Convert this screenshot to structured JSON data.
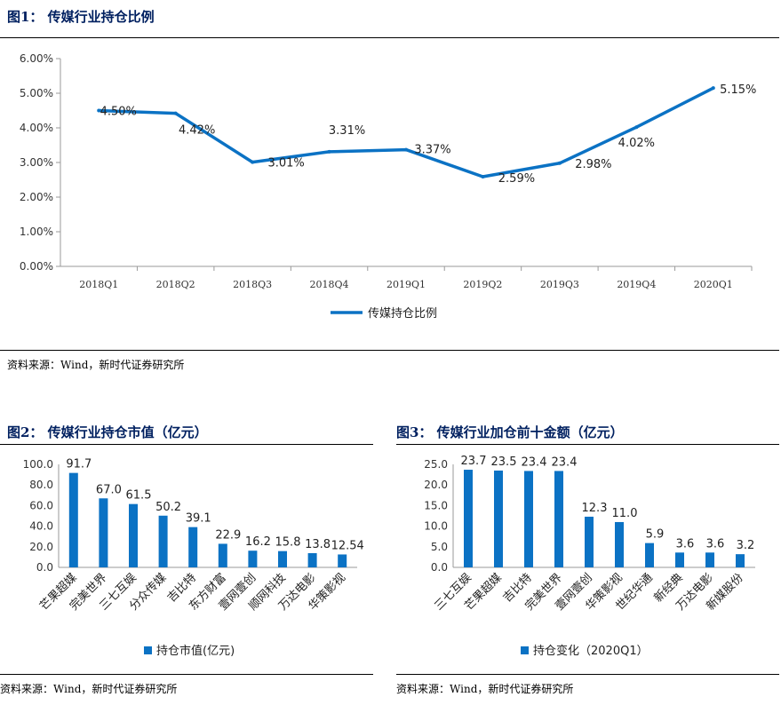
{
  "fig1": {
    "title": "图1： 传媒行业持仓比例",
    "source": "资料来源：Wind，新时代证券研究所",
    "legend": "传媒持仓比例",
    "color": "#0B72C4"
  },
  "fig2": {
    "title": "图2： 传媒行业持仓市值（亿元）",
    "source": "资料来源：Wind，新时代证券研究所",
    "legend": "持仓市值(亿元)",
    "color": "#0B72C4"
  },
  "fig3": {
    "title": "图3： 传媒行业加仓前十金额（亿元）",
    "source": "资料来源：Wind，新时代证券研究所",
    "legend": "持仓变化（2020Q1）",
    "color": "#0B72C4"
  },
  "chart_data": [
    {
      "type": "line",
      "categories": [
        "2018Q1",
        "2018Q2",
        "2018Q3",
        "2018Q4",
        "2019Q1",
        "2019Q2",
        "2019Q3",
        "2019Q4",
        "2020Q1"
      ],
      "series": [
        {
          "name": "传媒持仓比例",
          "values": [
            4.5,
            4.42,
            3.01,
            3.31,
            3.37,
            2.59,
            2.98,
            4.02,
            5.15
          ]
        }
      ],
      "data_labels": [
        "4.50%",
        "4.42%",
        "3.01%",
        "3.31%",
        "3.37%",
        "2.59%",
        "2.98%",
        "4.02%",
        "5.15%"
      ],
      "yticks": [
        "0.00%",
        "1.00%",
        "2.00%",
        "3.00%",
        "4.00%",
        "5.00%",
        "6.00%"
      ],
      "ylim": [
        0,
        6
      ],
      "legend_position": "bottom"
    },
    {
      "type": "bar",
      "categories": [
        "芒果超媒",
        "完美世界",
        "三七互娱",
        "分众传媒",
        "吉比特",
        "东方财富",
        "壹网壹创",
        "顺网科技",
        "万达电影",
        "华策影视"
      ],
      "series": [
        {
          "name": "持仓市值(亿元)",
          "values": [
            91.7,
            67.0,
            61.5,
            50.2,
            39.1,
            22.9,
            16.2,
            15.8,
            13.8,
            12.54
          ]
        }
      ],
      "data_labels": [
        "91.7",
        "67.0",
        "61.5",
        "50.2",
        "39.1",
        "22.9",
        "16.2",
        "15.8",
        "13.8",
        "12.54"
      ],
      "yticks": [
        "0.0",
        "20.0",
        "40.0",
        "60.0",
        "80.0",
        "100.0"
      ],
      "ylim": [
        0,
        100
      ],
      "legend_position": "bottom"
    },
    {
      "type": "bar",
      "categories": [
        "三七互娱",
        "芒果超媒",
        "吉比特",
        "完美世界",
        "壹网壹创",
        "华策影视",
        "世纪华通",
        "新经典",
        "万达电影",
        "新媒股份"
      ],
      "series": [
        {
          "name": "持仓变化（2020Q1）",
          "values": [
            23.7,
            23.5,
            23.4,
            23.4,
            12.3,
            11.0,
            5.9,
            3.6,
            3.6,
            3.2
          ]
        }
      ],
      "data_labels": [
        "23.7",
        "23.5",
        "23.4",
        "23.4",
        "12.3",
        "11.0",
        "5.9",
        "3.6",
        "3.6",
        "3.2"
      ],
      "yticks": [
        "0.0",
        "5.0",
        "10.0",
        "15.0",
        "20.0",
        "25.0"
      ],
      "ylim": [
        0,
        25
      ],
      "legend_position": "bottom"
    }
  ]
}
